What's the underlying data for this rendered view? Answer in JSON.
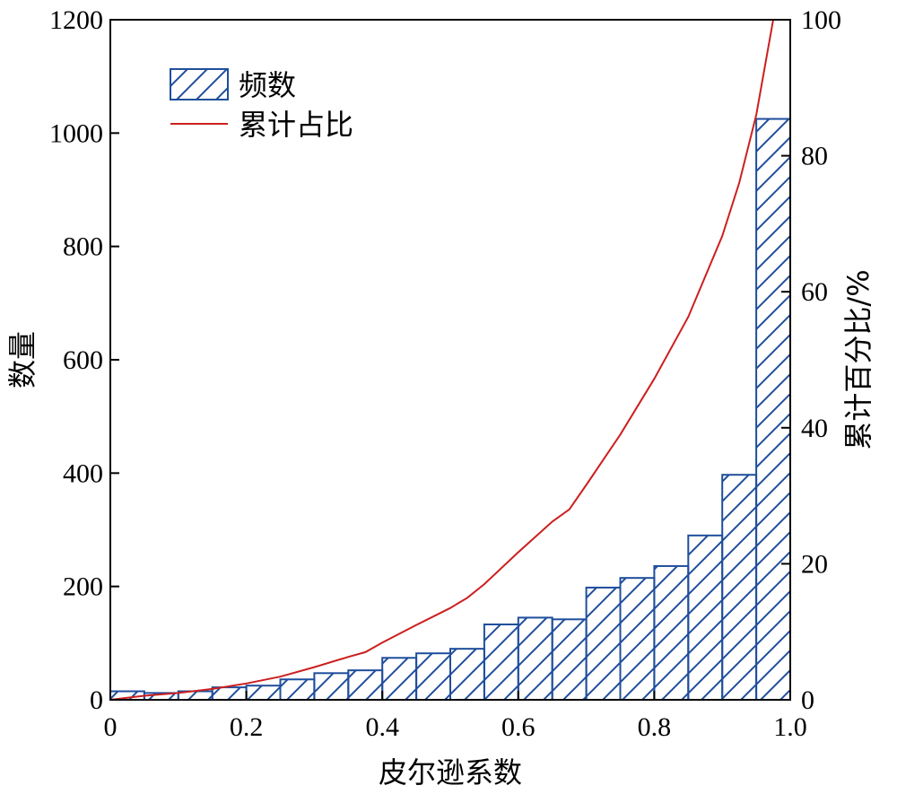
{
  "chart_data": {
    "type": "bar",
    "xlabel": "皮尔逊系数",
    "ylabel": "数量",
    "y2label": "累计百分比/%",
    "xlim": [
      0,
      1.0
    ],
    "ylim": [
      0,
      1200
    ],
    "y2lim": [
      0,
      100
    ],
    "xticks": [
      "0",
      "0.2",
      "0.4",
      "0.6",
      "0.8",
      "1.0"
    ],
    "yticks": [
      "0",
      "200",
      "400",
      "600",
      "800",
      "1000",
      "1200"
    ],
    "y2ticks": [
      "0",
      "20",
      "40",
      "60",
      "80",
      "100"
    ],
    "grid": false,
    "legend_position": "top-left",
    "bin_width": 0.05,
    "series": [
      {
        "name": "频数",
        "type": "bar",
        "hatch": "diagonal",
        "color": "#1f4e9c",
        "x": [
          0.025,
          0.075,
          0.125,
          0.175,
          0.225,
          0.275,
          0.325,
          0.375,
          0.425,
          0.475,
          0.525,
          0.575,
          0.625,
          0.675,
          0.725,
          0.775,
          0.825,
          0.875,
          0.925,
          0.975
        ],
        "values": [
          15,
          12,
          15,
          22,
          25,
          36,
          47,
          52,
          74,
          82,
          90,
          133,
          145,
          142,
          198,
          215,
          236,
          290,
          397,
          1025
        ]
      },
      {
        "name": "累计占比",
        "type": "line",
        "color": "#cc1f1f",
        "x": [
          0.0,
          0.05,
          0.1,
          0.15,
          0.2,
          0.25,
          0.3,
          0.35,
          0.375,
          0.4,
          0.45,
          0.5,
          0.525,
          0.55,
          0.6,
          0.65,
          0.675,
          0.7,
          0.75,
          0.8,
          0.85,
          0.9,
          0.925,
          0.95,
          0.975
        ],
        "values": [
          0,
          0.6,
          1.0,
          1.6,
          2.4,
          3.4,
          4.8,
          6.3,
          7.0,
          8.4,
          11.0,
          13.5,
          15.0,
          17.0,
          21.7,
          26.2,
          28.0,
          31.6,
          39.0,
          47.2,
          56.3,
          68.2,
          76.0,
          86.0,
          100.0
        ]
      }
    ]
  }
}
